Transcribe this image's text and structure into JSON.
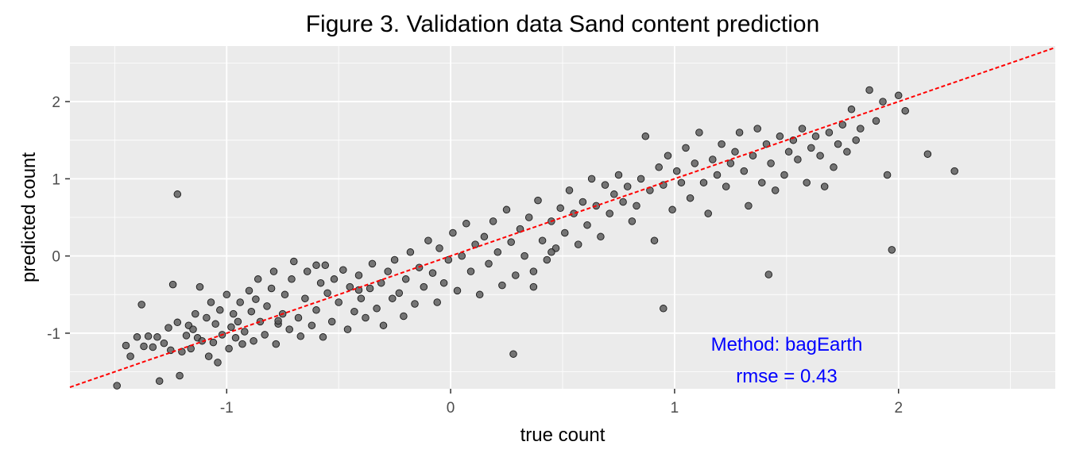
{
  "chart_data": {
    "type": "scatter",
    "title": "Figure 3.  Validation data Sand content prediction",
    "xlabel": "true count",
    "ylabel": "predicted count",
    "xlim": [
      -1.7,
      2.7
    ],
    "ylim": [
      -1.72,
      2.72
    ],
    "x_ticks": [
      -1,
      0,
      1,
      2
    ],
    "x_tick_labels": [
      "-1",
      "0",
      "1",
      "2"
    ],
    "y_ticks": [
      -1,
      0,
      1,
      2
    ],
    "y_tick_labels": [
      "-1",
      "0",
      "1",
      "2"
    ],
    "grid": true,
    "background": "#ebebeb",
    "point_color": "#595959",
    "reference_line": {
      "slope": 1,
      "intercept": 0,
      "style": "dashed",
      "color": "#ff0000"
    },
    "annotations": [
      "Method: bagEarth",
      "rmse = 0.43"
    ],
    "annotation_color": "#0000ff",
    "points": [
      [
        -1.49,
        -1.68
      ],
      [
        -1.43,
        -1.3
      ],
      [
        -1.45,
        -1.16
      ],
      [
        -1.4,
        -1.05
      ],
      [
        -1.38,
        -0.63
      ],
      [
        -1.37,
        -1.17
      ],
      [
        -1.35,
        -1.04
      ],
      [
        -1.33,
        -1.18
      ],
      [
        -1.31,
        -1.05
      ],
      [
        -1.3,
        -1.62
      ],
      [
        -1.28,
        -1.13
      ],
      [
        -1.26,
        -0.93
      ],
      [
        -1.25,
        -1.22
      ],
      [
        -1.24,
        -0.37
      ],
      [
        -1.22,
        -0.86
      ],
      [
        -1.21,
        -1.55
      ],
      [
        -1.2,
        -1.24
      ],
      [
        -1.18,
        -1.03
      ],
      [
        -1.17,
        -0.9
      ],
      [
        -1.16,
        -1.2
      ],
      [
        -1.15,
        -0.95
      ],
      [
        -1.14,
        -0.75
      ],
      [
        -1.13,
        -1.06
      ],
      [
        -1.12,
        -0.4
      ],
      [
        -1.22,
        0.8
      ],
      [
        -1.11,
        -1.1
      ],
      [
        -1.09,
        -0.8
      ],
      [
        -1.08,
        -1.3
      ],
      [
        -1.07,
        -0.6
      ],
      [
        -1.06,
        -1.12
      ],
      [
        -1.05,
        -0.88
      ],
      [
        -1.04,
        -1.38
      ],
      [
        -1.03,
        -0.7
      ],
      [
        -1.02,
        -1.02
      ],
      [
        -1.0,
        -0.5
      ],
      [
        -0.99,
        -1.2
      ],
      [
        -0.98,
        -0.92
      ],
      [
        -0.97,
        -0.75
      ],
      [
        -0.96,
        -1.06
      ],
      [
        -0.95,
        -0.85
      ],
      [
        -0.94,
        -0.6
      ],
      [
        -0.93,
        -1.14
      ],
      [
        -0.92,
        -0.98
      ],
      [
        -0.9,
        -0.45
      ],
      [
        -0.89,
        -0.72
      ],
      [
        -0.88,
        -1.1
      ],
      [
        -0.87,
        -0.56
      ],
      [
        -0.86,
        -0.3
      ],
      [
        -0.85,
        -0.85
      ],
      [
        -0.83,
        -1.02
      ],
      [
        -0.82,
        -0.65
      ],
      [
        -0.8,
        -0.42
      ],
      [
        -0.79,
        -0.2
      ],
      [
        -0.78,
        -1.14
      ],
      [
        -0.77,
        -0.88
      ],
      [
        -0.75,
        -0.75
      ],
      [
        -0.74,
        -0.5
      ],
      [
        -0.72,
        -0.95
      ],
      [
        -0.71,
        -0.3
      ],
      [
        -0.7,
        -0.07
      ],
      [
        -0.68,
        -0.8
      ],
      [
        -0.67,
        -1.04
      ],
      [
        -0.65,
        -0.55
      ],
      [
        -0.64,
        -0.2
      ],
      [
        -0.62,
        -0.9
      ],
      [
        -0.6,
        -0.7
      ],
      [
        -0.58,
        -0.35
      ],
      [
        -0.57,
        -1.05
      ],
      [
        -0.56,
        -0.12
      ],
      [
        -0.55,
        -0.48
      ],
      [
        -0.53,
        -0.85
      ],
      [
        -0.52,
        -0.3
      ],
      [
        -0.5,
        -0.6
      ],
      [
        -0.48,
        -0.18
      ],
      [
        -0.46,
        -0.95
      ],
      [
        -0.45,
        -0.4
      ],
      [
        -0.43,
        -0.72
      ],
      [
        -0.41,
        -0.25
      ],
      [
        -0.4,
        -0.55
      ],
      [
        -0.38,
        -0.8
      ],
      [
        -0.36,
        -0.42
      ],
      [
        -0.35,
        -0.1
      ],
      [
        -0.33,
        -0.68
      ],
      [
        -0.31,
        -0.35
      ],
      [
        -0.3,
        -0.9
      ],
      [
        -0.28,
        -0.2
      ],
      [
        -0.26,
        -0.55
      ],
      [
        -0.25,
        -0.05
      ],
      [
        -0.23,
        -0.48
      ],
      [
        -0.21,
        -0.78
      ],
      [
        -0.2,
        -0.3
      ],
      [
        -0.18,
        0.05
      ],
      [
        -0.16,
        -0.62
      ],
      [
        -0.14,
        -0.15
      ],
      [
        -0.12,
        -0.4
      ],
      [
        -0.1,
        0.2
      ],
      [
        -0.08,
        -0.22
      ],
      [
        -0.06,
        -0.6
      ],
      [
        -0.05,
        0.1
      ],
      [
        -0.03,
        -0.35
      ],
      [
        -0.01,
        -0.05
      ],
      [
        0.01,
        0.3
      ],
      [
        0.03,
        -0.45
      ],
      [
        0.05,
        0.0
      ],
      [
        0.07,
        0.42
      ],
      [
        0.09,
        -0.2
      ],
      [
        0.11,
        0.15
      ],
      [
        0.13,
        -0.5
      ],
      [
        0.15,
        0.25
      ],
      [
        0.17,
        -0.1
      ],
      [
        0.19,
        0.45
      ],
      [
        0.21,
        0.05
      ],
      [
        0.23,
        -0.38
      ],
      [
        0.25,
        0.6
      ],
      [
        0.27,
        0.18
      ],
      [
        0.29,
        -0.25
      ],
      [
        0.31,
        0.35
      ],
      [
        0.33,
        0.0
      ],
      [
        0.35,
        0.5
      ],
      [
        0.37,
        -0.4
      ],
      [
        0.39,
        0.72
      ],
      [
        0.41,
        0.2
      ],
      [
        0.43,
        -0.05
      ],
      [
        0.45,
        0.45
      ],
      [
        0.47,
        0.1
      ],
      [
        0.49,
        0.62
      ],
      [
        0.51,
        0.3
      ],
      [
        0.53,
        0.85
      ],
      [
        0.55,
        0.55
      ],
      [
        0.57,
        0.15
      ],
      [
        0.59,
        0.7
      ],
      [
        0.61,
        0.4
      ],
      [
        0.63,
        1.0
      ],
      [
        0.65,
        0.65
      ],
      [
        0.67,
        0.25
      ],
      [
        0.69,
        0.92
      ],
      [
        0.71,
        0.55
      ],
      [
        0.73,
        0.8
      ],
      [
        0.75,
        1.05
      ],
      [
        0.77,
        0.7
      ],
      [
        0.79,
        0.9
      ],
      [
        0.81,
        0.45
      ],
      [
        0.83,
        0.65
      ],
      [
        0.85,
        1.0
      ],
      [
        0.87,
        1.55
      ],
      [
        0.89,
        0.85
      ],
      [
        0.91,
        0.2
      ],
      [
        0.93,
        1.15
      ],
      [
        0.95,
        0.92
      ],
      [
        0.97,
        1.3
      ],
      [
        0.99,
        0.6
      ],
      [
        1.01,
        1.1
      ],
      [
        1.03,
        0.95
      ],
      [
        1.05,
        1.4
      ],
      [
        1.07,
        0.75
      ],
      [
        1.09,
        1.2
      ],
      [
        1.11,
        1.6
      ],
      [
        1.13,
        0.95
      ],
      [
        1.15,
        0.55
      ],
      [
        1.17,
        1.25
      ],
      [
        1.19,
        1.05
      ],
      [
        1.21,
        1.45
      ],
      [
        1.23,
        0.9
      ],
      [
        1.25,
        1.2
      ],
      [
        1.27,
        1.35
      ],
      [
        1.29,
        1.6
      ],
      [
        1.31,
        1.1
      ],
      [
        1.33,
        0.65
      ],
      [
        1.35,
        1.3
      ],
      [
        1.37,
        1.65
      ],
      [
        1.39,
        0.95
      ],
      [
        1.41,
        1.45
      ],
      [
        1.43,
        1.2
      ],
      [
        1.45,
        0.85
      ],
      [
        1.47,
        1.55
      ],
      [
        1.49,
        1.05
      ],
      [
        1.51,
        1.35
      ],
      [
        1.53,
        1.5
      ],
      [
        1.55,
        1.25
      ],
      [
        1.57,
        1.65
      ],
      [
        1.59,
        0.95
      ],
      [
        1.61,
        1.4
      ],
      [
        1.63,
        1.55
      ],
      [
        1.65,
        1.3
      ],
      [
        1.67,
        0.9
      ],
      [
        1.69,
        1.6
      ],
      [
        1.71,
        1.15
      ],
      [
        1.73,
        1.45
      ],
      [
        1.75,
        1.7
      ],
      [
        1.77,
        1.35
      ],
      [
        1.79,
        1.9
      ],
      [
        1.81,
        1.5
      ],
      [
        1.83,
        1.65
      ],
      [
        1.87,
        2.15
      ],
      [
        1.9,
        1.75
      ],
      [
        1.93,
        2.0
      ],
      [
        1.95,
        1.05
      ],
      [
        1.97,
        0.08
      ],
      [
        2.0,
        2.08
      ],
      [
        2.03,
        1.88
      ],
      [
        2.13,
        1.32
      ],
      [
        2.25,
        1.1
      ],
      [
        1.42,
        -0.24
      ],
      [
        0.95,
        -0.68
      ],
      [
        0.28,
        -1.27
      ],
      [
        0.45,
        0.05
      ],
      [
        0.37,
        -0.2
      ],
      [
        -0.77,
        -0.84
      ],
      [
        -0.6,
        -0.12
      ],
      [
        -0.41,
        -0.44
      ]
    ]
  }
}
